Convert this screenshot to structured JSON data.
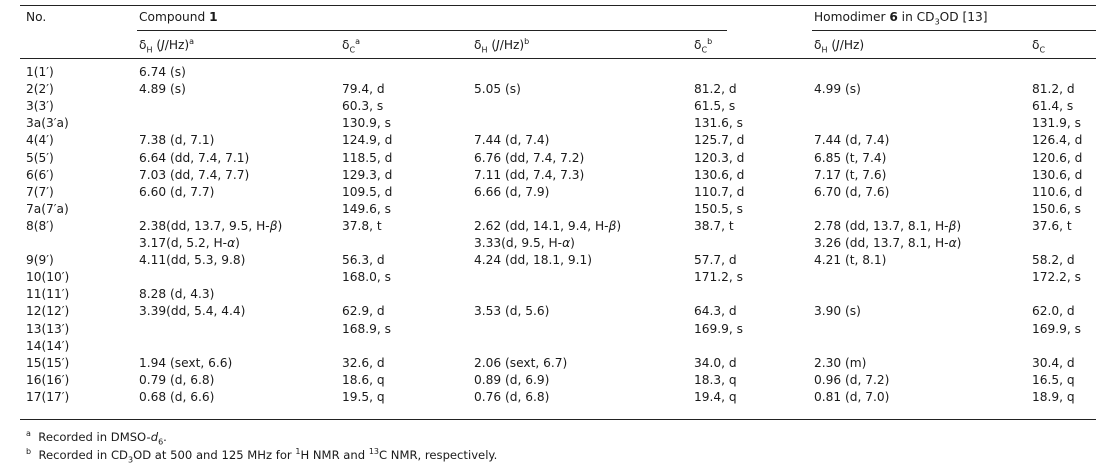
{
  "table": {
    "header": {
      "no": "No.",
      "compound_prefix": "Compound ",
      "compound_num": "1",
      "homodimer_prefix": "Homodimer ",
      "homodimer_num": "6",
      "homodimer_suffix": " in CD",
      "homodimer_sub": "3",
      "homodimer_tail": "OD [13]",
      "sub_cols": [
        {
          "sym": "δ",
          "sub": "H",
          "text": " (J/Hz)",
          "sup": "a"
        },
        {
          "sym": "δ",
          "sub": "C",
          "text": "",
          "sup": "a"
        },
        {
          "sym": "δ",
          "sub": "H",
          "text": " (J/Hz)",
          "sup": "b"
        },
        {
          "sym": "δ",
          "sub": "C",
          "text": "",
          "sup": "b"
        },
        {
          "sym": "δ",
          "sub": "H",
          "text": " (J/Hz)",
          "sup": ""
        },
        {
          "sym": "δ",
          "sub": "C",
          "text": "",
          "sup": ""
        }
      ]
    },
    "rows": [
      {
        "no": "1(1′)",
        "c1": "6.74 (s)",
        "c2": "",
        "c3": "",
        "c4": "",
        "c5": "",
        "c6": ""
      },
      {
        "no": "2(2′)",
        "c1": "4.89 (s)",
        "c2": "79.4, d",
        "c3": "5.05 (s)",
        "c4": "81.2, d",
        "c5": "4.99 (s)",
        "c6": "81.2, d"
      },
      {
        "no": "3(3′)",
        "c1": "",
        "c2": "60.3, s",
        "c3": "",
        "c4": "61.5, s",
        "c5": "",
        "c6": "61.4, s"
      },
      {
        "no": "3a(3′a)",
        "c1": "",
        "c2": "130.9, s",
        "c3": "",
        "c4": "131.6, s",
        "c5": "",
        "c6": "131.9, s"
      },
      {
        "no": "4(4′)",
        "c1": "7.38 (d, 7.1)",
        "c2": "124.9, d",
        "c3": "7.44 (d, 7.4)",
        "c4": "125.7, d",
        "c5": "7.44 (d, 7.4)",
        "c6": "126.4, d"
      },
      {
        "no": "5(5′)",
        "c1": "6.64 (dd, 7.4, 7.1)",
        "c2": "118.5, d",
        "c3": "6.76 (dd, 7.4, 7.2)",
        "c4": "120.3, d",
        "c5": "6.85 (t, 7.4)",
        "c6": "120.6, d"
      },
      {
        "no": "6(6′)",
        "c1": "7.03 (dd, 7.4, 7.7)",
        "c2": "129.3, d",
        "c3": "7.11 (dd, 7.4, 7.3)",
        "c4": "130.6, d",
        "c5": "7.17 (t, 7.6)",
        "c6": "130.6, d"
      },
      {
        "no": "7(7′)",
        "c1": "6.60 (d, 7.7)",
        "c2": "109.5, d",
        "c3": "6.66 (d, 7.9)",
        "c4": "110.7, d",
        "c5": "6.70 (d, 7.6)",
        "c6": "110.6, d"
      },
      {
        "no": "7a(7′a)",
        "c1": "",
        "c2": "149.6, s",
        "c3": "",
        "c4": "150.5, s",
        "c5": "",
        "c6": "150.6, s"
      },
      {
        "no": "8(8′)",
        "c1": "2.38(dd, 13.7, 9.5, H-β)",
        "c2": "37.8, t",
        "c3": "2.62 (dd, 14.1, 9.4, H-β)",
        "c4": "38.7, t",
        "c5": "2.78 (dd, 13.7, 8.1, H-β)",
        "c6": "37.6, t"
      },
      {
        "no": "",
        "c1": "3.17(d, 5.2, H-α)",
        "c2": "",
        "c3": "3.33(d, 9.5, H-α)",
        "c4": "",
        "c5": "3.26 (dd, 13.7, 8.1, H-α)",
        "c6": ""
      },
      {
        "no": "9(9′)",
        "c1": "4.11(dd, 5.3, 9.8)",
        "c2": "56.3, d",
        "c3": "4.24 (dd, 18.1, 9.1)",
        "c4": "57.7, d",
        "c5": "4.21 (t, 8.1)",
        "c6": "58.2, d"
      },
      {
        "no": "10(10′)",
        "c1": "",
        "c2": "168.0, s",
        "c3": "",
        "c4": "171.2, s",
        "c5": "",
        "c6": "172.2, s"
      },
      {
        "no": "11(11′)",
        "c1": "8.28 (d, 4.3)",
        "c2": "",
        "c3": "",
        "c4": "",
        "c5": "",
        "c6": ""
      },
      {
        "no": "12(12′)",
        "c1": "3.39(dd, 5.4, 4.4)",
        "c2": "62.9, d",
        "c3": "3.53 (d, 5.6)",
        "c4": "64.3, d",
        "c5": "3.90 (s)",
        "c6": "62.0, d"
      },
      {
        "no": "13(13′)",
        "c1": "",
        "c2": "168.9, s",
        "c3": "",
        "c4": "169.9, s",
        "c5": "",
        "c6": "169.9, s"
      },
      {
        "no": "14(14′)",
        "c1": "",
        "c2": "",
        "c3": "",
        "c4": "",
        "c5": "",
        "c6": ""
      },
      {
        "no": "15(15′)",
        "c1": "1.94 (sext, 6.6)",
        "c2": "32.6, d",
        "c3": "2.06 (sext, 6.7)",
        "c4": "34.0, d",
        "c5": "2.30 (m)",
        "c6": "30.4, d"
      },
      {
        "no": "16(16′)",
        "c1": "0.79 (d, 6.8)",
        "c2": "18.6, q",
        "c3": "0.89 (d, 6.9)",
        "c4": "18.3, q",
        "c5": "0.96 (d, 7.2)",
        "c6": "16.5, q"
      },
      {
        "no": "17(17′)",
        "c1": "0.68 (d, 6.6)",
        "c2": "19.5, q",
        "c3": "0.76 (d, 6.8)",
        "c4": "19.4, q",
        "c5": "0.81 (d, 7.0)",
        "c6": "18.9, q"
      }
    ],
    "footnotes": [
      {
        "mark": "a",
        "parts": [
          "Recorded in DMSO-",
          "d",
          "6",
          "."
        ]
      },
      {
        "mark": "b",
        "parts": [
          "Recorded in CD",
          "3",
          "OD at 500 and 125 MHz for ",
          "1",
          "H NMR and ",
          "13",
          "C NMR, respectively."
        ]
      }
    ]
  }
}
